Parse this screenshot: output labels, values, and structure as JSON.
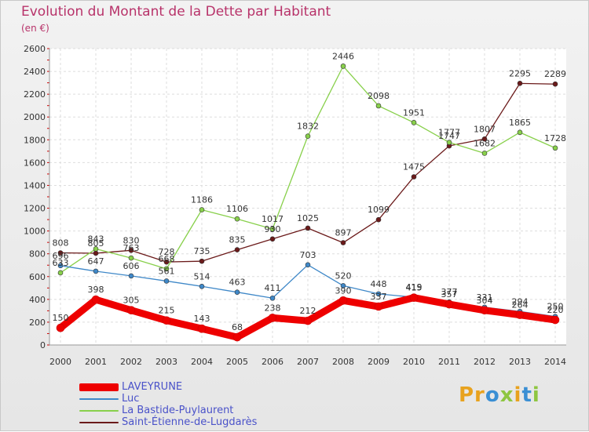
{
  "title": "Evolution du Montant de la Dette par Habitant",
  "subtitle": "(en €)",
  "logo": {
    "text": "Proxiti"
  },
  "chart_data": {
    "type": "line",
    "x": [
      "2000",
      "2001",
      "2002",
      "2003",
      "2004",
      "2005",
      "2006",
      "2007",
      "2008",
      "2009",
      "2010",
      "2011",
      "2012",
      "2013",
      "2014"
    ],
    "ylim": [
      0,
      2600
    ],
    "yticks": [
      0,
      200,
      400,
      600,
      800,
      1000,
      1200,
      1400,
      1600,
      1800,
      2000,
      2200,
      2400,
      2600
    ],
    "grid": true,
    "legend_position": "bottom-left",
    "series": [
      {
        "name": "LAVEYRUNE",
        "color": "#ee0000",
        "values": [
          150,
          398,
          305,
          215,
          143,
          68,
          238,
          212,
          390,
          337,
          415,
          357,
          304,
          264,
          220
        ]
      },
      {
        "name": "Luc",
        "color": "#3f88c8",
        "values": [
          696,
          647,
          606,
          561,
          514,
          463,
          411,
          703,
          520,
          448,
          419,
          377,
          331,
          294,
          250
        ]
      },
      {
        "name": "La Bastide-Puylaurent",
        "color": "#88d04b",
        "values": [
          633,
          843,
          763,
          668,
          1186,
          1106,
          1017,
          1832,
          2446,
          2098,
          1951,
          1777,
          1682,
          1865,
          1728
        ]
      },
      {
        "name": "Saint-Étienne-de-Lugdarès",
        "color": "#6b1a1a",
        "values": [
          808,
          805,
          830,
          728,
          735,
          835,
          930,
          1025,
          897,
          1099,
          1475,
          1747,
          1807,
          2295,
          2289
        ]
      }
    ]
  }
}
